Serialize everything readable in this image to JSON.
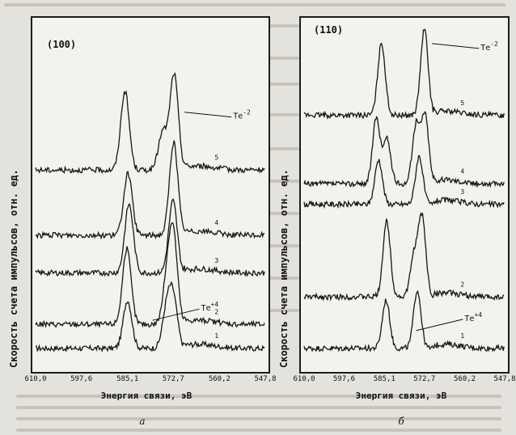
{
  "figure": {
    "y_axis_label": "Скорость счета импульсов, отн. ед.",
    "x_axis_label": "Энергия связи, эВ"
  },
  "chart_data": [
    {
      "type": "line",
      "panel_caption": "а",
      "panel_title": "(100)",
      "xlabel": "Энергия связи, эВ",
      "ylabel": "Скорость счета импульсов, отн. ед.",
      "x_tick_labels": [
        "610,0",
        "597,6",
        "585,1",
        "572,7",
        "560,2",
        "547,8"
      ],
      "x_ticks": [
        610.0,
        597.6,
        585.1,
        572.7,
        560.2,
        547.8
      ],
      "xlim": [
        610.0,
        547.8
      ],
      "x_reversed": true,
      "series": [
        {
          "name": "1",
          "baseline": 0.05,
          "peaks": [
            {
              "x": 585.1,
              "height": 0.14
            },
            {
              "x": 574.5,
              "height": 0.11
            },
            {
              "x": 572.7,
              "height": 0.14
            }
          ]
        },
        {
          "name": "2",
          "baseline": 0.12,
          "peaks": [
            {
              "x": 585.3,
              "height": 0.22
            },
            {
              "x": 574.4,
              "height": 0.12
            },
            {
              "x": 572.7,
              "height": 0.25
            }
          ]
        },
        {
          "name": "3",
          "baseline": 0.27,
          "peaks": [
            {
              "x": 584.7,
              "height": 0.2
            },
            {
              "x": 572.8,
              "height": 0.21
            }
          ]
        },
        {
          "name": "4",
          "baseline": 0.38,
          "peaks": [
            {
              "x": 585.0,
              "height": 0.18
            },
            {
              "x": 572.6,
              "height": 0.27
            }
          ]
        },
        {
          "name": "5",
          "baseline": 0.57,
          "peaks": [
            {
              "x": 585.8,
              "height": 0.23
            },
            {
              "x": 575.6,
              "height": 0.11
            },
            {
              "x": 572.5,
              "height": 0.28
            }
          ]
        }
      ],
      "annotations": [
        {
          "text": "Te",
          "sup": "-2",
          "near": "top-right"
        },
        {
          "text": "Te",
          "sup": "+4",
          "near": "bottom-right"
        }
      ]
    },
    {
      "type": "line",
      "panel_caption": "б",
      "panel_title": "(110)",
      "xlabel": "Энергия связи, эВ",
      "ylabel": "Скорость счета импульсов, отн. ед.",
      "x_tick_labels": [
        "610,0",
        "597,6",
        "585,1",
        "572,7",
        "560,2",
        "547,8"
      ],
      "x_ticks": [
        610.0,
        597.6,
        585.1,
        572.7,
        560.2,
        547.8
      ],
      "xlim": [
        610.0,
        547.8
      ],
      "x_reversed": true,
      "series": [
        {
          "name": "1",
          "baseline": 0.05,
          "peaks": [
            {
              "x": 584.6,
              "height": 0.14
            },
            {
              "x": 574.9,
              "height": 0.17
            }
          ]
        },
        {
          "name": "2",
          "baseline": 0.2,
          "peaks": [
            {
              "x": 584.4,
              "height": 0.22
            },
            {
              "x": 575.9,
              "height": 0.12
            },
            {
              "x": 573.4,
              "height": 0.23
            }
          ]
        },
        {
          "name": "3",
          "baseline": 0.47,
          "peaks": [
            {
              "x": 586.9,
              "height": 0.13
            },
            {
              "x": 574.3,
              "height": 0.14
            }
          ]
        },
        {
          "name": "4",
          "baseline": 0.53,
          "peaks": [
            {
              "x": 587.6,
              "height": 0.19
            },
            {
              "x": 584.3,
              "height": 0.13
            },
            {
              "x": 575.3,
              "height": 0.17
            },
            {
              "x": 572.5,
              "height": 0.2
            }
          ]
        },
        {
          "name": "5",
          "baseline": 0.73,
          "peaks": [
            {
              "x": 586.0,
              "height": 0.21
            },
            {
              "x": 572.7,
              "height": 0.25
            }
          ]
        }
      ],
      "annotations": [
        {
          "text": "Te",
          "sup": "-2",
          "near": "top-right"
        },
        {
          "text": "Te",
          "sup": "+4",
          "near": "bottom-right"
        }
      ]
    }
  ]
}
